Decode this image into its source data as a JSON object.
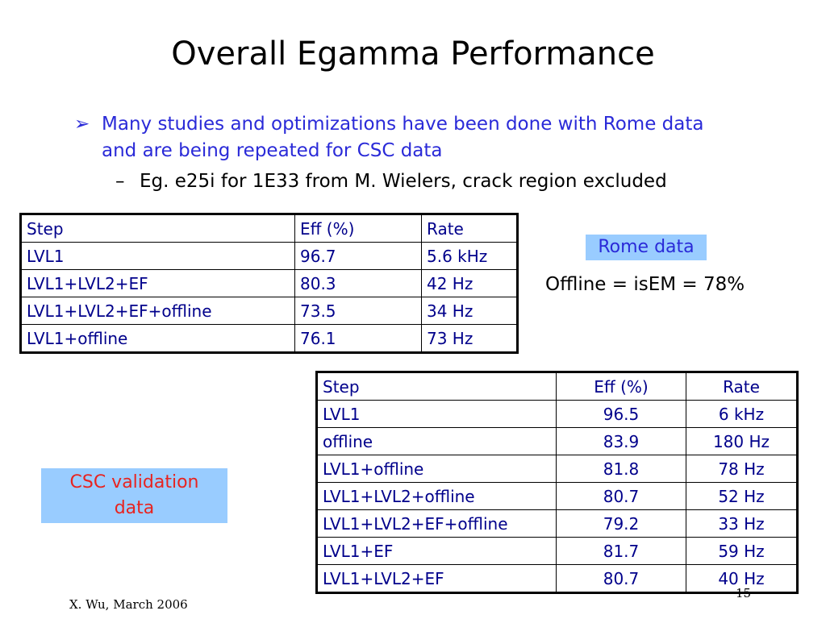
{
  "slide": {
    "title": "Overall Egamma Performance",
    "bullet_marker": "➢",
    "bullet_text": "Many studies and optimizations have been done with Rome data and are being repeated for CSC data",
    "sub_marker": "–",
    "sub_text": "Eg. e25i for 1E33 from M. Wielers, crack region excluded",
    "rome_label": "Rome data",
    "offline_note": "Offline = isEM = 78%",
    "csc_label_line1": "CSC validation",
    "csc_label_line2": "data",
    "footer": "X. Wu, March 2006",
    "page_number": "15"
  },
  "colors": {
    "bullet_blue": "#2a2ad8",
    "table_text": "#00008b",
    "label_bg": "#99ccff",
    "csc_red": "#e8231f"
  },
  "rome_table": {
    "headers": [
      "Step",
      "Eff (%)",
      "Rate"
    ],
    "rows": [
      [
        "LVL1",
        "96.7",
        "5.6 kHz"
      ],
      [
        "LVL1+LVL2+EF",
        "80.3",
        "42 Hz"
      ],
      [
        "LVL1+LVL2+EF+offline",
        "73.5",
        "34 Hz"
      ],
      [
        "LVL1+offline",
        "76.1",
        "73 Hz"
      ]
    ]
  },
  "csc_table": {
    "headers": [
      "Step",
      "Eff (%)",
      "Rate"
    ],
    "rows": [
      [
        "LVL1",
        "96.5",
        "6 kHz"
      ],
      [
        "offline",
        "83.9",
        "180 Hz"
      ],
      [
        "LVL1+offline",
        "81.8",
        "78 Hz"
      ],
      [
        "LVL1+LVL2+offline",
        "80.7",
        "52 Hz"
      ],
      [
        "LVL1+LVL2+EF+offline",
        "79.2",
        "33 Hz"
      ],
      [
        "LVL1+EF",
        "81.7",
        "59 Hz"
      ],
      [
        "LVL1+LVL2+EF",
        "80.7",
        "40 Hz"
      ]
    ]
  }
}
